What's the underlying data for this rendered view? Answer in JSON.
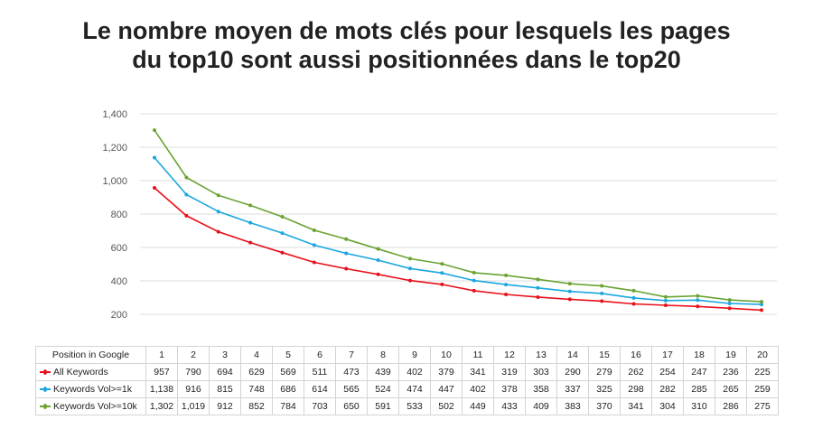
{
  "title_line1": "Le nombre moyen de mots clés pour lesquels les pages",
  "title_line2": "du top10 sont aussi positionnées dans le top20",
  "chart_data": {
    "type": "line",
    "title": "Le nombre moyen de mots clés pour lesquels les pages du top10 sont aussi positionnées dans le top20",
    "categories": [
      "1",
      "2",
      "3",
      "4",
      "5",
      "6",
      "7",
      "8",
      "9",
      "10",
      "11",
      "12",
      "13",
      "14",
      "15",
      "16",
      "17",
      "18",
      "19",
      "20"
    ],
    "category_header": "Position in Google",
    "ylim": [
      200,
      1400
    ],
    "yticks": [
      "200",
      "400",
      "600",
      "800",
      "1,000",
      "1,200",
      "1,400"
    ],
    "ytick_values": [
      200,
      400,
      600,
      800,
      1000,
      1200,
      1400
    ],
    "grid": true,
    "legend": "data-table",
    "series": [
      {
        "name": "All Keywords",
        "color": "#e8101a",
        "values": [
          957,
          790,
          694,
          629,
          569,
          511,
          473,
          439,
          402,
          379,
          341,
          319,
          303,
          290,
          279,
          262,
          254,
          247,
          236,
          225
        ],
        "labels": [
          "957",
          "790",
          "694",
          "629",
          "569",
          "511",
          "473",
          "439",
          "402",
          "379",
          "341",
          "319",
          "303",
          "290",
          "279",
          "262",
          "254",
          "247",
          "236",
          "225"
        ]
      },
      {
        "name": "Keywords Vol>=1k",
        "color": "#1aa7df",
        "values": [
          1138,
          916,
          815,
          748,
          686,
          614,
          565,
          524,
          474,
          447,
          402,
          378,
          358,
          337,
          325,
          298,
          282,
          285,
          265,
          259
        ],
        "labels": [
          "1,138",
          "916",
          "815",
          "748",
          "686",
          "614",
          "565",
          "524",
          "474",
          "447",
          "402",
          "378",
          "358",
          "337",
          "325",
          "298",
          "282",
          "285",
          "265",
          "259"
        ]
      },
      {
        "name": "Keywords Vol>=10k",
        "color": "#6aa332",
        "values": [
          1302,
          1019,
          912,
          852,
          784,
          703,
          650,
          591,
          533,
          502,
          449,
          433,
          409,
          383,
          370,
          341,
          304,
          310,
          286,
          275
        ],
        "labels": [
          "1,302",
          "1,019",
          "912",
          "852",
          "784",
          "703",
          "650",
          "591",
          "533",
          "502",
          "449",
          "433",
          "409",
          "383",
          "370",
          "341",
          "304",
          "310",
          "286",
          "275"
        ]
      }
    ]
  }
}
